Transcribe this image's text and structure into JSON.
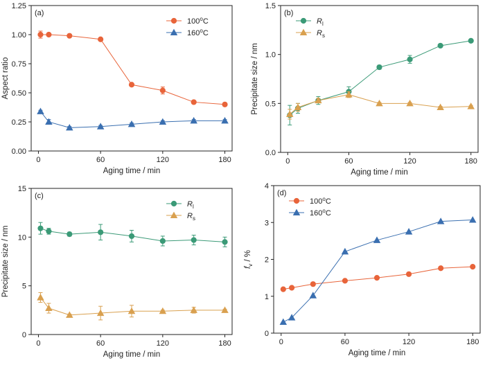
{
  "figure": {
    "colors": {
      "orange": "#E8643A",
      "blue": "#3A6FB0",
      "green": "#3B9A77",
      "tan": "#D9A04F",
      "axis": "#222222"
    }
  },
  "chart_data": [
    {
      "panel": "(a)",
      "type": "line",
      "xlabel": "Aging time / min",
      "ylabel": "Aspect ratio",
      "xlim": [
        -7,
        187
      ],
      "ylim": [
        0,
        1.25
      ],
      "xticks": [
        0,
        60,
        120,
        180
      ],
      "yticks": [
        0.0,
        0.25,
        0.5,
        0.75,
        1.0,
        1.25
      ],
      "ytick_labels": [
        "0.00",
        "0.25",
        "0.50",
        "0.75",
        "1.00",
        "1.25"
      ],
      "legend_loc": "top-right",
      "series": [
        {
          "name": "100",
          "name_sup": "o",
          "name_tail": "C",
          "color": "#E8643A",
          "marker": "circle",
          "x": [
            2,
            10,
            30,
            60,
            90,
            120,
            150,
            180
          ],
          "y": [
            1.0,
            1.0,
            0.99,
            0.96,
            0.57,
            0.52,
            0.42,
            0.4
          ],
          "err": [
            0.03,
            0.01,
            0.01,
            0.01,
            0.01,
            0.03,
            0.01,
            0.01
          ]
        },
        {
          "name": "160",
          "name_sup": "o",
          "name_tail": "C",
          "color": "#3A6FB0",
          "marker": "triangle",
          "x": [
            2,
            10,
            30,
            60,
            90,
            120,
            150,
            180
          ],
          "y": [
            0.34,
            0.25,
            0.2,
            0.21,
            0.23,
            0.25,
            0.26,
            0.26
          ],
          "err": [
            0.01,
            0.02,
            0.01,
            0.01,
            0.01,
            0.01,
            0.01,
            0.01
          ]
        }
      ]
    },
    {
      "panel": "(b)",
      "type": "line",
      "xlabel": "Aging time / min",
      "ylabel": "Precipitate size / nm",
      "xlim": [
        -7,
        187
      ],
      "ylim": [
        0,
        1.5
      ],
      "xticks": [
        0,
        60,
        120,
        180
      ],
      "yticks": [
        0,
        0.5,
        1.0,
        1.5
      ],
      "ytick_labels": [
        "0.0",
        "0.5",
        "1.0",
        "1.5"
      ],
      "legend_loc": "top-left",
      "series": [
        {
          "name": "R",
          "name_sub": "l",
          "color": "#3B9A77",
          "marker": "circle",
          "x": [
            2,
            10,
            30,
            60,
            90,
            120,
            150,
            180
          ],
          "y": [
            0.38,
            0.45,
            0.53,
            0.62,
            0.87,
            0.95,
            1.09,
            1.14
          ],
          "err": [
            0.1,
            0.05,
            0.04,
            0.05,
            0.02,
            0.04,
            0.01,
            0.01
          ]
        },
        {
          "name": "R",
          "name_sub": "s",
          "color": "#D9A04F",
          "marker": "triangle",
          "x": [
            2,
            10,
            30,
            60,
            90,
            120,
            150,
            180
          ],
          "y": [
            0.39,
            0.46,
            0.53,
            0.59,
            0.5,
            0.5,
            0.46,
            0.47
          ],
          "err": [
            0.05,
            0.04,
            0.02,
            0.03,
            0.01,
            0.01,
            0.01,
            0.01
          ]
        }
      ]
    },
    {
      "panel": "(c)",
      "type": "line",
      "xlabel": "Aging time / min",
      "ylabel": "Precipitate size / nm",
      "xlim": [
        -7,
        187
      ],
      "ylim": [
        0,
        15
      ],
      "xticks": [
        0,
        60,
        120,
        180
      ],
      "yticks": [
        0,
        5,
        10,
        15
      ],
      "ytick_labels": [
        "0",
        "5",
        "10",
        "15"
      ],
      "legend_loc": "top-right",
      "series": [
        {
          "name": "R",
          "name_sub": "l",
          "color": "#3B9A77",
          "marker": "circle",
          "x": [
            2,
            10,
            30,
            60,
            90,
            120,
            150,
            180
          ],
          "y": [
            10.9,
            10.6,
            10.3,
            10.5,
            10.1,
            9.6,
            9.7,
            9.5
          ],
          "err": [
            0.6,
            0.3,
            0.2,
            0.8,
            0.6,
            0.5,
            0.5,
            0.5
          ]
        },
        {
          "name": "R",
          "name_sub": "s",
          "color": "#D9A04F",
          "marker": "triangle",
          "x": [
            2,
            10,
            30,
            60,
            90,
            120,
            150,
            180
          ],
          "y": [
            3.8,
            2.7,
            2.0,
            2.2,
            2.4,
            2.4,
            2.5,
            2.5
          ],
          "err": [
            0.5,
            0.5,
            0.1,
            0.7,
            0.6,
            0.1,
            0.3,
            0.1
          ]
        }
      ]
    },
    {
      "panel": "(d)",
      "type": "line",
      "xlabel": "Aging time / min",
      "ylabel": "f",
      "ylabel_sub": "v",
      "ylabel_tail": " / %",
      "xlim": [
        -7,
        187
      ],
      "ylim": [
        0,
        4
      ],
      "xticks": [
        0,
        60,
        120,
        180
      ],
      "yticks": [
        0,
        1,
        2,
        3,
        4
      ],
      "ytick_labels": [
        "0",
        "1",
        "2",
        "3",
        "4"
      ],
      "legend_loc": "top-left",
      "series": [
        {
          "name": "100",
          "name_sup": "o",
          "name_tail": "C",
          "color": "#E8643A",
          "marker": "circle",
          "x": [
            2,
            10,
            30,
            60,
            90,
            120,
            150,
            180
          ],
          "y": [
            1.19,
            1.23,
            1.33,
            1.42,
            1.5,
            1.6,
            1.76,
            1.8
          ],
          "err": [
            0,
            0,
            0,
            0,
            0,
            0,
            0,
            0
          ]
        },
        {
          "name": "160",
          "name_sup": "o",
          "name_tail": "C",
          "color": "#3A6FB0",
          "marker": "triangle",
          "x": [
            2,
            10,
            30,
            60,
            90,
            120,
            150,
            180
          ],
          "y": [
            0.3,
            0.42,
            1.02,
            2.21,
            2.52,
            2.75,
            3.03,
            3.07
          ],
          "err": [
            0,
            0,
            0,
            0,
            0,
            0,
            0,
            0
          ]
        }
      ]
    }
  ]
}
